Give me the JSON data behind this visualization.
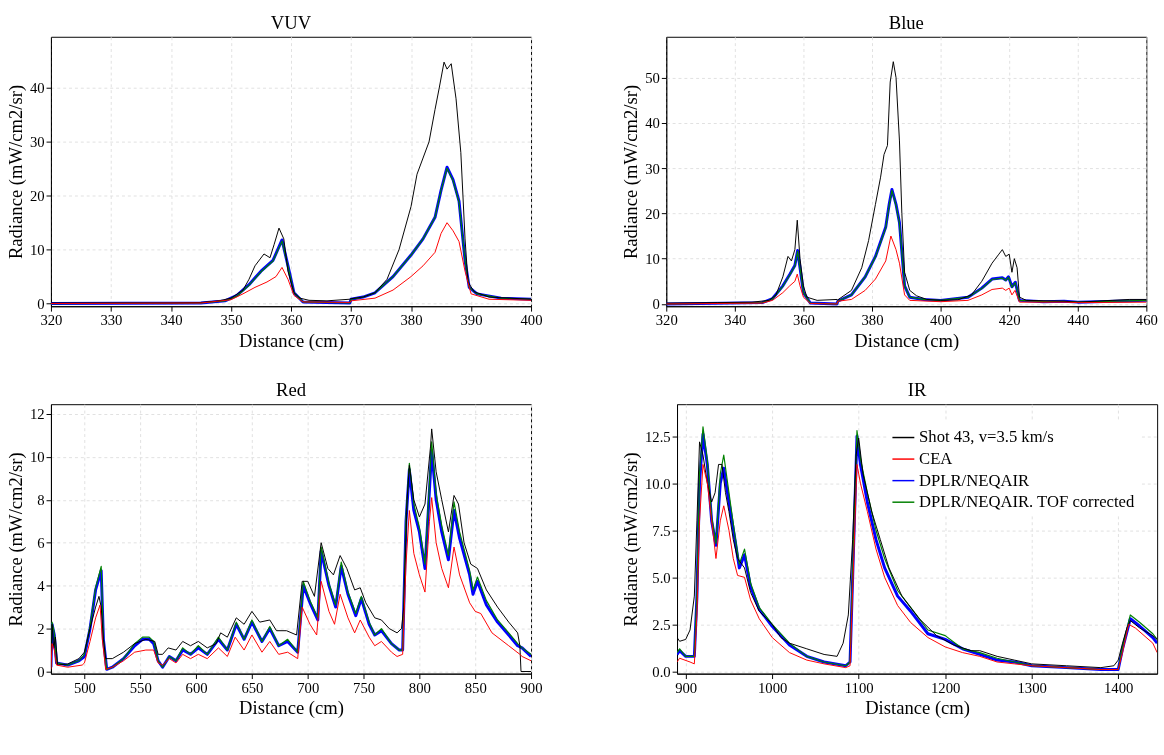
{
  "chart_data": [
    {
      "type": "line",
      "title": "VUV",
      "xlabel": "Distance (cm)",
      "ylabel": "Radiance (mW/cm2/sr)",
      "xlim": [
        320,
        400
      ],
      "xticks": [
        320,
        330,
        340,
        350,
        360,
        370,
        380,
        390,
        400
      ],
      "ylim": [
        -0.5,
        49.5
      ],
      "yticks": [
        0,
        10,
        20,
        30,
        40
      ],
      "grid": true,
      "series": [
        {
          "color": "#000000",
          "x": [
            320,
            340,
            345,
            348,
            350,
            352,
            353,
            354,
            355.5,
            356.5,
            357.2,
            358,
            358.8,
            359.5,
            360.5,
            361.5,
            363,
            366,
            369.8,
            370,
            372,
            374,
            376,
            378,
            380,
            381,
            382,
            383,
            384,
            384.7,
            385.5,
            386,
            386.7,
            387.5,
            388.3,
            389,
            389.5,
            390.5,
            393,
            400
          ],
          "values": [
            0.1,
            0.1,
            0.2,
            0.5,
            1,
            2.5,
            4.5,
            7,
            9.2,
            8.5,
            11,
            14,
            12,
            6,
            2,
            1,
            0.6,
            0.5,
            0.8,
            0.9,
            1.2,
            2,
            4.5,
            10,
            18,
            24,
            27,
            30,
            36,
            40,
            44.8,
            43.5,
            44.5,
            38,
            28,
            12,
            4,
            2.2,
            1.2,
            0.8
          ]
        },
        {
          "color": "#ff0000",
          "x": [
            320,
            345,
            350,
            352,
            354,
            356,
            357.5,
            358.5,
            359.5,
            360.5,
            362,
            369.8,
            370,
            374,
            377,
            380,
            382,
            384,
            385,
            386,
            387,
            388,
            389,
            390,
            393,
            400
          ],
          "values": [
            0,
            0.1,
            0.7,
            1.8,
            3,
            4,
            5,
            6.7,
            4.5,
            1.5,
            0.3,
            0.2,
            0.5,
            1,
            2.5,
            5,
            7,
            9.5,
            13,
            15,
            13.5,
            11.5,
            6,
            1.8,
            0.8,
            0.6
          ]
        },
        {
          "color": "#0000ff",
          "x": [
            320,
            345,
            349,
            351,
            353,
            355,
            357,
            358.5,
            359.5,
            360.5,
            362,
            369.8,
            370,
            372,
            374,
            377,
            380,
            382,
            384,
            385,
            386,
            387,
            388,
            389,
            389.7,
            391,
            395,
            400
          ],
          "values": [
            0,
            0.1,
            0.5,
            1.5,
            3.5,
            6,
            8,
            11.8,
            7,
            2,
            0.3,
            0.1,
            0.8,
            1.2,
            2,
            5,
            9,
            12,
            16,
            21,
            25.3,
            23,
            19,
            8,
            3,
            1.8,
            1,
            0.8
          ]
        },
        {
          "color": "#008000",
          "x": [
            320,
            345,
            349,
            351,
            353,
            355,
            357,
            358.5,
            359.5,
            360.5,
            362,
            369.8,
            370,
            372,
            374,
            377,
            380,
            382,
            384,
            385,
            386,
            387,
            388,
            389,
            389.7,
            391,
            395,
            400
          ],
          "values": [
            0,
            0.1,
            0.5,
            1.4,
            3.4,
            5.9,
            7.9,
            11.6,
            6.9,
            2,
            0.3,
            0.1,
            0.8,
            1.2,
            2,
            5,
            9,
            12,
            16,
            21,
            25.1,
            22.8,
            18.8,
            8,
            3,
            1.8,
            1,
            0.8
          ]
        }
      ]
    },
    {
      "type": "line",
      "title": "Blue",
      "xlabel": "Distance (cm)",
      "ylabel": "Radiance (mW/cm2/sr)",
      "xlim": [
        320,
        460
      ],
      "xticks": [
        320,
        340,
        360,
        380,
        400,
        420,
        440,
        460
      ],
      "ylim": [
        -0.5,
        59
      ],
      "yticks": [
        0,
        10,
        20,
        30,
        40,
        50
      ],
      "grid": true,
      "series": [
        {
          "color": "#000000",
          "x": [
            320,
            335,
            345,
            350,
            352,
            354,
            355.5,
            356.5,
            357.5,
            358.2,
            359,
            360,
            361,
            364,
            369.8,
            370,
            374,
            377,
            379,
            381,
            382.5,
            383.5,
            384.5,
            385.3,
            386.2,
            387,
            388,
            388.7,
            389.5,
            391,
            393,
            396,
            400,
            405,
            409,
            412,
            415,
            417,
            418,
            419,
            420,
            420.8,
            421.5,
            422.3,
            423,
            425,
            436,
            440,
            450,
            455,
            460
          ],
          "values": [
            0.2,
            0.3,
            0.4,
            0.8,
            2,
            6,
            10.5,
            9.5,
            12,
            18.5,
            10,
            4,
            1.5,
            0.8,
            1,
            0.9,
            3,
            8,
            14,
            22,
            28,
            33,
            35,
            49,
            53.5,
            50,
            36,
            20,
            7,
            3,
            1.8,
            1,
            0.8,
            0.9,
            2,
            5,
            9,
            11,
            12,
            10.5,
            11,
            7,
            10,
            8,
            1.5,
            0.8,
            0.6,
            0.4,
            0.8,
            1,
            1
          ]
        },
        {
          "color": "#ff0000",
          "x": [
            320,
            348,
            351,
            354,
            356,
            357.5,
            358.2,
            359,
            360,
            362,
            369.8,
            370,
            374,
            378,
            381,
            384,
            385.5,
            387,
            388,
            389.5,
            391,
            400,
            408,
            412,
            415,
            418,
            419,
            420,
            420.8,
            421.7,
            423,
            436,
            440,
            460
          ],
          "values": [
            0,
            0.2,
            0.8,
            2.5,
            4,
            5,
            6.6,
            4,
            1.5,
            0.1,
            0,
            0.6,
            1,
            3,
            5.5,
            9.5,
            15,
            12,
            9,
            2,
            0.8,
            0.5,
            0.8,
            2,
            3.2,
            3.5,
            3,
            3.5,
            2,
            3,
            0.4,
            0.4,
            0.3,
            0.4
          ]
        },
        {
          "color": "#0000ff",
          "x": [
            320,
            348,
            351,
            354,
            356,
            357.5,
            358.3,
            359,
            360,
            362,
            369.8,
            370,
            374,
            378,
            381,
            384,
            385,
            385.8,
            387,
            388,
            389.5,
            391,
            395,
            400,
            408,
            412,
            415,
            418,
            419,
            419.8,
            420.8,
            421.8,
            423,
            430,
            436,
            440,
            460
          ],
          "values": [
            0,
            0.3,
            1.2,
            4,
            6.5,
            8.5,
            11.8,
            8,
            2.5,
            0.2,
            0,
            0.6,
            2,
            6,
            10.5,
            17,
            22,
            25.3,
            22,
            18,
            4,
            1.5,
            1,
            0.8,
            1.5,
            3.5,
            5.5,
            5.8,
            5.3,
            6,
            3.8,
            4.8,
            0.8,
            0.5,
            0.6,
            0.4,
            0.8
          ]
        },
        {
          "color": "#008000",
          "x": [
            320,
            348,
            351,
            354,
            356,
            357.5,
            358.3,
            359,
            360,
            362,
            369.8,
            370,
            374,
            378,
            381,
            384,
            385,
            385.8,
            387,
            388,
            389.5,
            391,
            395,
            400,
            408,
            412,
            415,
            418,
            419,
            419.8,
            420.8,
            421.8,
            423,
            430,
            436,
            440,
            460
          ],
          "values": [
            0,
            0.3,
            1.1,
            3.9,
            6.4,
            8.4,
            11.6,
            7.9,
            2.5,
            0.2,
            0,
            0.6,
            2,
            6,
            10.4,
            16.8,
            21.8,
            25.1,
            21.8,
            17.8,
            4,
            1.5,
            1,
            0.8,
            1.5,
            3.4,
            5.4,
            5.7,
            5.2,
            5.9,
            3.7,
            4.7,
            0.8,
            0.5,
            0.6,
            0.4,
            0.8
          ]
        }
      ]
    },
    {
      "type": "line",
      "title": "Red",
      "xlabel": "Distance (cm)",
      "ylabel": "Radiance (mW/cm2/sr)",
      "xlim": [
        470,
        900
      ],
      "xticks": [
        500,
        550,
        600,
        650,
        700,
        750,
        800,
        850,
        900
      ],
      "ylim": [
        -0.1,
        12.45
      ],
      "yticks": [
        0,
        2,
        4,
        6,
        8,
        10,
        12
      ],
      "grid": true,
      "series": [
        {
          "color": "#000000",
          "x": [
            470,
            471,
            472.5,
            474,
            476,
            485,
            495,
            500,
            505,
            510,
            513,
            515,
            517,
            519,
            525,
            535,
            545,
            555,
            563,
            566,
            570,
            575,
            582,
            588,
            595,
            602,
            610,
            618,
            622,
            628,
            636,
            643,
            650,
            657,
            666,
            672,
            681,
            690,
            695,
            700,
            706,
            712,
            718,
            723,
            729,
            735,
            742,
            747,
            752,
            760,
            766,
            773,
            780,
            784,
            786,
            789,
            791,
            795,
            800,
            805,
            810,
            811,
            815,
            820,
            826,
            831,
            835,
            840,
            846,
            852,
            860,
            870,
            880,
            888,
            890,
            891,
            900
          ],
          "values": [
            0,
            2.2,
            1.1,
            1.6,
            0.3,
            0.35,
            0.6,
            0.9,
            2,
            3,
            3.5,
            3,
            1.5,
            0.6,
            0.6,
            0.9,
            1.3,
            1.5,
            1.4,
            0.8,
            0.8,
            1.1,
            1,
            1.4,
            1.2,
            1.4,
            1.1,
            1.3,
            1.8,
            1.6,
            2.5,
            2.2,
            2.8,
            2.3,
            2.4,
            1.9,
            1.9,
            1.7,
            4.2,
            4.2,
            3.5,
            6,
            4.8,
            4.5,
            5.4,
            4.8,
            3.8,
            3.9,
            3.2,
            2.5,
            2.4,
            2,
            1.8,
            2,
            3,
            8,
            9.6,
            8,
            7.2,
            7.8,
            10.5,
            11.3,
            9.3,
            8,
            6.5,
            8.2,
            7.8,
            6,
            5,
            4.8,
            3.8,
            3,
            2.3,
            1.8,
            1.2,
            0,
            0
          ]
        },
        {
          "color": "#ff0000",
          "x": [
            470,
            471,
            473,
            475,
            485,
            498,
            500,
            505,
            510,
            514,
            516,
            519,
            525,
            535,
            545,
            555,
            562,
            566,
            570,
            576,
            582,
            588,
            595,
            602,
            610,
            620,
            628,
            635,
            643,
            650,
            659,
            666,
            674,
            682,
            691,
            695,
            702,
            708,
            712,
            719,
            724,
            729,
            736,
            742,
            747,
            755,
            760,
            766,
            775,
            780,
            785,
            788,
            791,
            795,
            800,
            805,
            809,
            811,
            815,
            820,
            826,
            831,
            836,
            845,
            850,
            855,
            865,
            880,
            890,
            892,
            900
          ],
          "values": [
            0.1,
            1.3,
            1,
            0.3,
            0.2,
            0.3,
            0.4,
            1.4,
            2.5,
            3.1,
            1.5,
            0.1,
            0.2,
            0.5,
            0.9,
            1,
            1,
            0.4,
            0.3,
            0.6,
            0.4,
            0.8,
            0.6,
            0.8,
            0.6,
            1.1,
            0.7,
            1.6,
            1,
            1.7,
            0.9,
            1.4,
            0.8,
            0.9,
            0.6,
            3,
            2.2,
            1.7,
            4.2,
            2.8,
            2.2,
            3.6,
            2.5,
            1.8,
            2.4,
            1.6,
            1.2,
            1.4,
            0.9,
            0.7,
            0.8,
            5,
            7.5,
            5.5,
            4.5,
            3.7,
            7,
            8.1,
            6,
            4.8,
            3.9,
            5.8,
            4.5,
            3.2,
            2.8,
            2.7,
            1.8,
            1.2,
            0.8,
            0.7,
            0.5
          ]
        },
        {
          "color": "#0000ff",
          "x": [
            470,
            471,
            473,
            475,
            485,
            495,
            500,
            505,
            510,
            515,
            517,
            520,
            525,
            535,
            545,
            552,
            558,
            562,
            566,
            570,
            576,
            582,
            588,
            595,
            602,
            610,
            620,
            628,
            636,
            643,
            650,
            659,
            666,
            674,
            682,
            691,
            696,
            702,
            709,
            712,
            719,
            725,
            730,
            736,
            743,
            748,
            755,
            760,
            766,
            775,
            782,
            785,
            788,
            791,
            795,
            800,
            805,
            808,
            811,
            815,
            820,
            826,
            831,
            836,
            845,
            848,
            852,
            860,
            870,
            880,
            888,
            892,
            900
          ],
          "values": [
            0.2,
            2.2,
            1.7,
            0.4,
            0.3,
            0.5,
            0.7,
            2,
            3.8,
            4.7,
            1.5,
            0.1,
            0.2,
            0.6,
            1.2,
            1.5,
            1.5,
            1.3,
            0.5,
            0.2,
            0.7,
            0.5,
            1,
            0.8,
            1.1,
            0.8,
            1.5,
            1,
            2.2,
            1.5,
            2.3,
            1.4,
            2,
            1.2,
            1.4,
            0.9,
            4,
            3.2,
            2.4,
            5.6,
            4,
            3,
            4.9,
            3.6,
            2.6,
            3.4,
            2.2,
            1.7,
            1.9,
            1.3,
            1,
            1,
            7,
            9.4,
            7.5,
            6.5,
            4.8,
            7.5,
            10.3,
            8,
            6.5,
            5.2,
            7.5,
            6.2,
            4.5,
            3.6,
            4.2,
            3.1,
            2.3,
            1.7,
            1.2,
            1.1,
            0.7
          ]
        },
        {
          "color": "#008000",
          "x": [
            470,
            471,
            473,
            475,
            485,
            495,
            500,
            505,
            510,
            515,
            517,
            520,
            525,
            535,
            545,
            552,
            558,
            562,
            566,
            570,
            576,
            582,
            588,
            595,
            602,
            610,
            620,
            628,
            636,
            643,
            650,
            659,
            666,
            674,
            682,
            691,
            696,
            702,
            709,
            712,
            719,
            725,
            730,
            736,
            743,
            748,
            755,
            760,
            766,
            775,
            782,
            785,
            788,
            791,
            795,
            800,
            805,
            808,
            811,
            815,
            820,
            826,
            831,
            836,
            845,
            848,
            852,
            860,
            870,
            880,
            888,
            892,
            900
          ],
          "values": [
            0.2,
            2.3,
            1.8,
            0.4,
            0.3,
            0.5,
            0.8,
            2.1,
            3.9,
            4.9,
            1.5,
            0.1,
            0.2,
            0.6,
            1.3,
            1.6,
            1.6,
            1.4,
            0.5,
            0.2,
            0.7,
            0.5,
            1.1,
            0.8,
            1.2,
            0.8,
            1.6,
            1,
            2.3,
            1.5,
            2.4,
            1.4,
            2.1,
            1.2,
            1.5,
            0.9,
            4.2,
            3.3,
            2.5,
            5.8,
            4.1,
            3.1,
            5.1,
            3.7,
            2.7,
            3.5,
            2.3,
            1.7,
            2,
            1.3,
            1,
            1,
            7.2,
            9.7,
            7.8,
            6.7,
            5,
            7.8,
            10.7,
            8.3,
            6.8,
            5.4,
            7.9,
            6.5,
            4.7,
            3.8,
            4.4,
            3.3,
            2.4,
            1.8,
            1.3,
            1.1,
            0.8
          ]
        }
      ]
    },
    {
      "type": "line",
      "title": "IR",
      "xlabel": "Distance (cm)",
      "ylabel": "Radiance (mW/cm2/sr)",
      "xlim": [
        890,
        1445
      ],
      "xticks": [
        900,
        1000,
        1100,
        1200,
        1300,
        1400
      ],
      "ylim": [
        -0.12,
        14.2
      ],
      "yticks": [
        {
          "value": 0,
          "label": "0.0"
        },
        2.5,
        {
          "value": 5,
          "label": "5.0"
        },
        7.5,
        {
          "value": 10,
          "label": "10.0"
        },
        12.5
      ],
      "grid": true,
      "legend": "top right",
      "series": [
        {
          "name": "Shot 43, v=3.5 km/s",
          "color": "#000000",
          "x": [
            890,
            893,
            900,
            905,
            910,
            913,
            916,
            920,
            925,
            930,
            934,
            938,
            942,
            946,
            950,
            955,
            960,
            968,
            975,
            985,
            1000,
            1010,
            1020,
            1040,
            1060,
            1075,
            1082,
            1088,
            1093,
            1097,
            1100,
            1105,
            1115,
            1125,
            1135,
            1150,
            1170,
            1190,
            1210,
            1230,
            1240,
            1260,
            1280,
            1300,
            1340,
            1380,
            1395,
            1400,
            1405,
            1410,
            1414,
            1425,
            1440,
            1445
          ],
          "values": [
            1.8,
            1.6,
            1.7,
            2.2,
            4,
            8,
            12.2,
            11.5,
            10,
            9,
            9.5,
            11,
            11,
            9.5,
            8.5,
            7,
            6,
            5.5,
            4.2,
            3.2,
            2.5,
            1.8,
            1.5,
            1.2,
            0.9,
            0.8,
            1.5,
            3,
            7,
            11.5,
            12.4,
            10.5,
            8.5,
            7,
            5.5,
            4,
            2.8,
            1.9,
            1.4,
            1.1,
            1.1,
            0.8,
            0.6,
            0.4,
            0.3,
            0.2,
            0.3,
            0.6,
            1.5,
            2.3,
            2.7,
            2.3,
            1.9,
            1.7
          ]
        },
        {
          "name": "CEA",
          "color": "#ff0000",
          "x": [
            890,
            893,
            905,
            910,
            913,
            916,
            920,
            925,
            930,
            935,
            940,
            944,
            950,
            955,
            960,
            968,
            975,
            985,
            1000,
            1020,
            1040,
            1060,
            1085,
            1090,
            1095,
            1098,
            1102,
            1110,
            1120,
            1130,
            1145,
            1160,
            1180,
            1200,
            1220,
            1240,
            1260,
            1280,
            1300,
            1340,
            1380,
            1400,
            1405,
            1412,
            1420,
            1440,
            1445
          ],
          "values": [
            0.5,
            0.7,
            0.5,
            0.4,
            3,
            8,
            11,
            10,
            8,
            6,
            8,
            8.8,
            7.5,
            6,
            5.1,
            5,
            3.8,
            2.8,
            1.8,
            1,
            0.6,
            0.4,
            0.2,
            0.3,
            7,
            11,
            10,
            8.5,
            6.5,
            5,
            3.5,
            2.6,
            1.8,
            1.3,
            1,
            0.8,
            0.5,
            0.4,
            0.3,
            0.2,
            0.1,
            0.1,
            1,
            2.5,
            2.3,
            1.5,
            1
          ]
        },
        {
          "name": "DPLR/NEQAIR",
          "color": "#0000ff",
          "x": [
            890,
            893,
            900,
            910,
            913,
            916,
            920,
            925,
            930,
            935,
            940,
            944,
            950,
            957,
            962,
            968,
            975,
            985,
            1000,
            1020,
            1040,
            1060,
            1085,
            1090,
            1095,
            1098,
            1102,
            1110,
            1120,
            1130,
            1145,
            1160,
            1180,
            1200,
            1220,
            1240,
            1260,
            1280,
            1300,
            1340,
            1380,
            1400,
            1405,
            1414,
            1425,
            1440,
            1445
          ],
          "values": [
            0.9,
            1.1,
            0.8,
            0.8,
            4,
            10,
            12.6,
            11,
            8,
            6.7,
            10,
            10.8,
            9,
            7,
            5.5,
            6.2,
            4.5,
            3.3,
            2.4,
            1.4,
            0.8,
            0.5,
            0.3,
            0.5,
            8,
            12.5,
            11,
            9,
            7,
            5.5,
            4,
            3.2,
            2,
            1.7,
            1.2,
            0.9,
            0.6,
            0.5,
            0.3,
            0.2,
            0.1,
            0.1,
            1.2,
            2.8,
            2.4,
            1.8,
            1.5
          ]
        },
        {
          "name": "DPLR/NEQAIR. TOF corrected",
          "color": "#008000",
          "x": [
            890,
            893,
            900,
            910,
            913,
            916,
            920,
            925,
            930,
            935,
            940,
            944,
            950,
            957,
            962,
            968,
            975,
            985,
            1000,
            1020,
            1040,
            1060,
            1085,
            1090,
            1095,
            1098,
            1102,
            1110,
            1120,
            1130,
            1145,
            1160,
            1180,
            1200,
            1220,
            1240,
            1260,
            1280,
            1300,
            1340,
            1380,
            1400,
            1405,
            1414,
            1425,
            1440,
            1445
          ],
          "values": [
            1,
            1.2,
            0.8,
            0.8,
            4.2,
            10.5,
            13,
            11.2,
            8.2,
            6.8,
            10.5,
            11.5,
            9.5,
            7.2,
            5.7,
            6.5,
            4.7,
            3.4,
            2.5,
            1.5,
            0.8,
            0.5,
            0.3,
            0.5,
            8.5,
            12.8,
            11.3,
            9.5,
            7.5,
            6,
            4.3,
            3.4,
            2.2,
            1.9,
            1.2,
            1,
            0.7,
            0.5,
            0.3,
            0.2,
            0.1,
            0.1,
            1.3,
            3,
            2.6,
            2,
            1.7
          ]
        }
      ]
    }
  ]
}
